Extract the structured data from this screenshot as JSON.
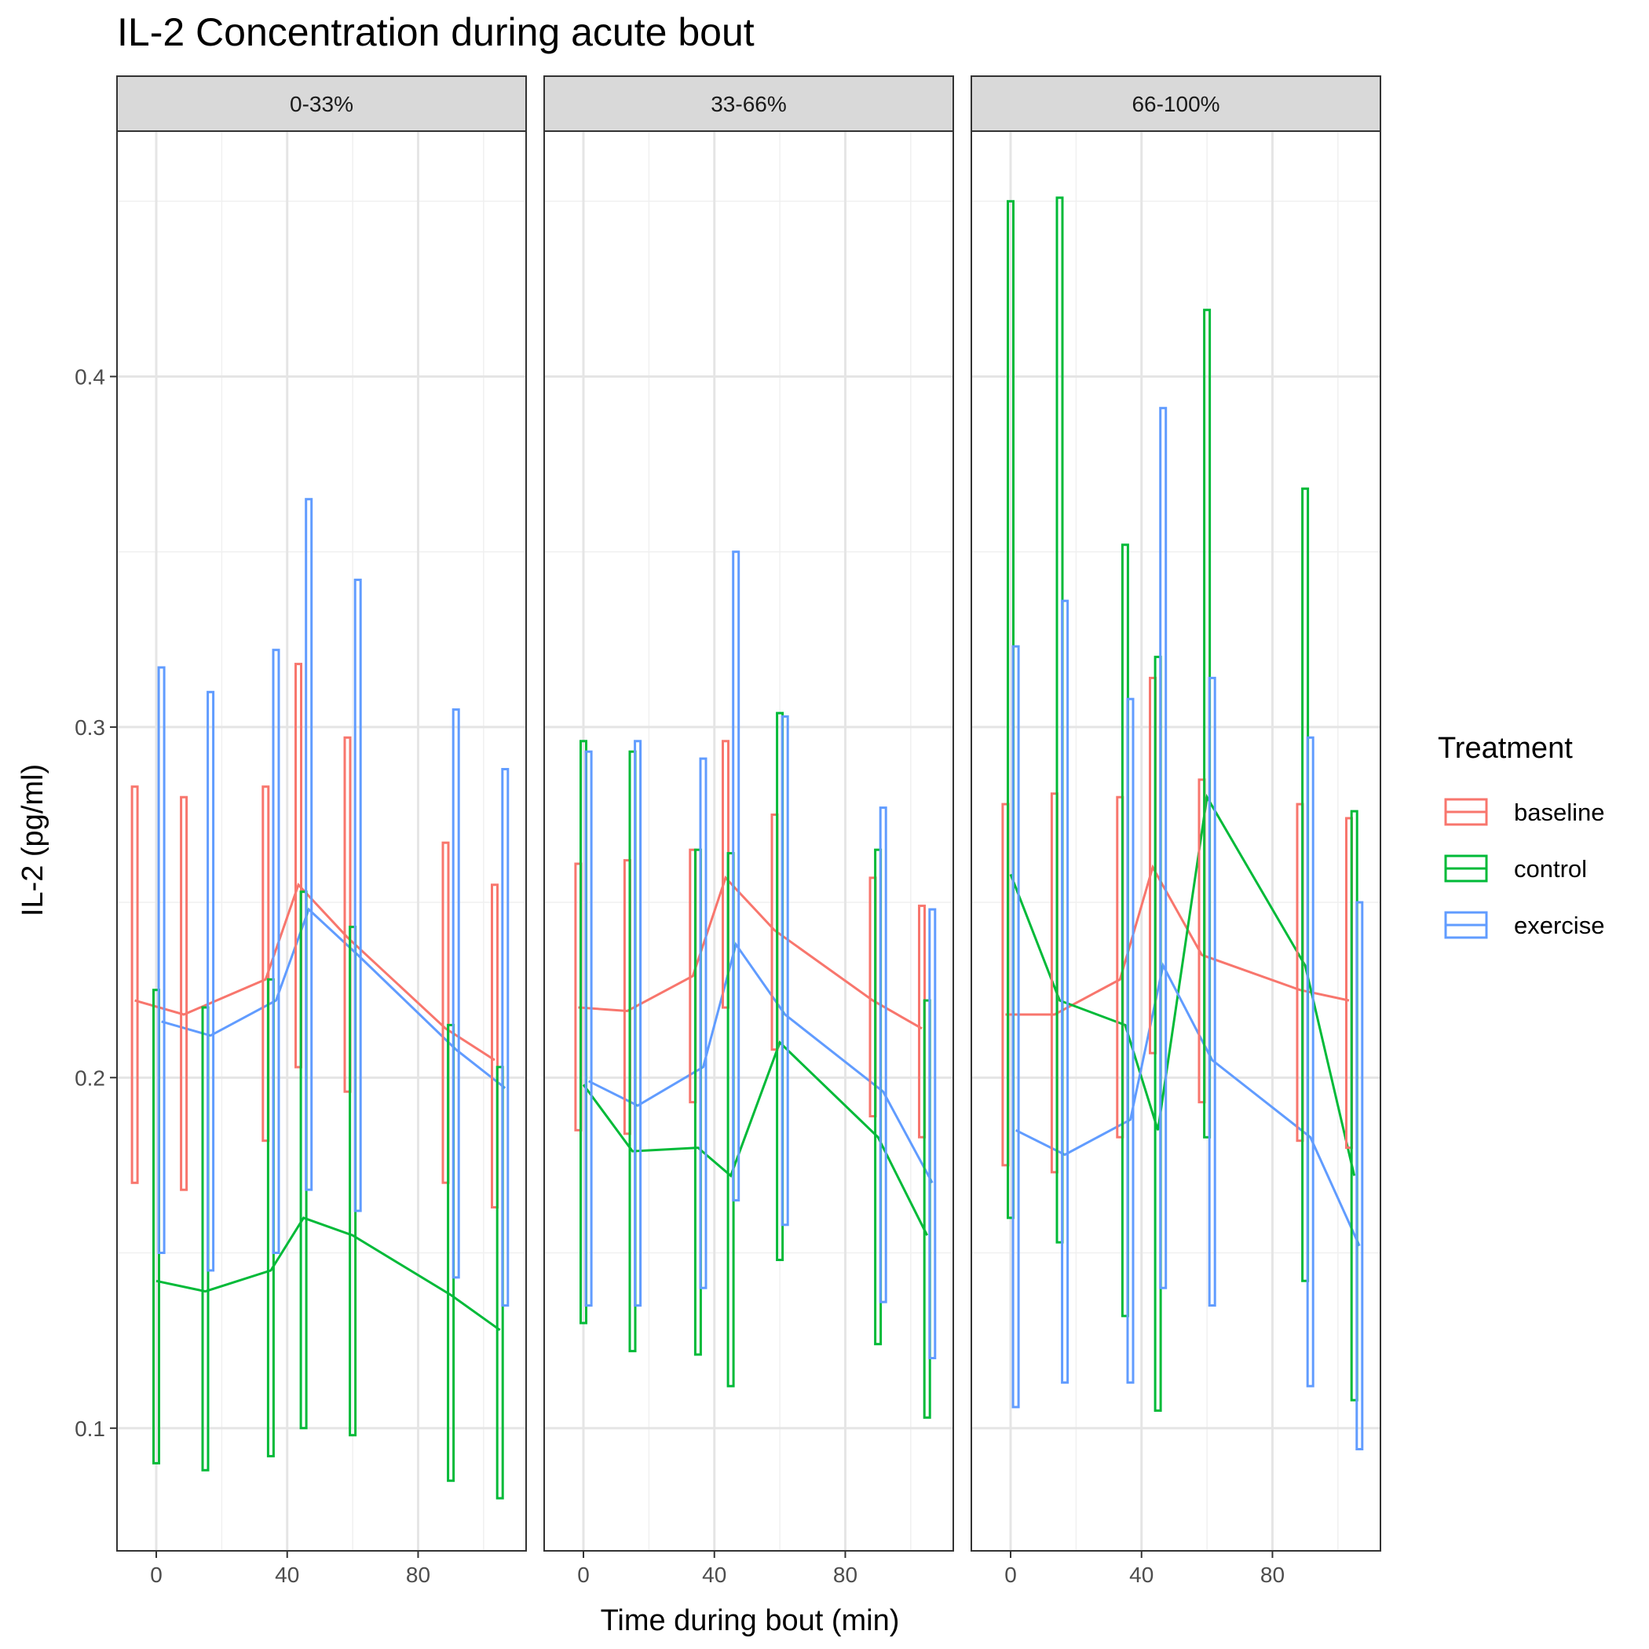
{
  "chart_data": {
    "type": "line",
    "title": "IL-2 Concentration during acute bout",
    "xlabel": "Time during bout (min)",
    "ylabel": "IL-2 (pg/ml)",
    "xlim": [
      -12,
      113
    ],
    "ylim": [
      0.065,
      0.47
    ],
    "x_ticks": [
      0,
      40,
      80
    ],
    "x_tick_labels": [
      "0",
      "40",
      "80"
    ],
    "y_ticks": [
      0.1,
      0.2,
      0.3,
      0.4
    ],
    "y_tick_labels": [
      "0.1",
      "0.2",
      "0.3",
      "0.4"
    ],
    "grid": true,
    "legend": {
      "title": "Treatment",
      "position": "right"
    },
    "series_styles": [
      {
        "name": "baseline",
        "color": "#F8766D"
      },
      {
        "name": "control",
        "color": "#00BA38"
      },
      {
        "name": "exercise",
        "color": "#619CFF"
      }
    ],
    "panels": [
      {
        "label": "0-33%",
        "series": [
          {
            "name": "baseline",
            "x": [
              -5,
              10,
              35,
              45,
              60,
              90,
              105
            ],
            "y": [
              0.222,
              0.218,
              0.228,
              0.255,
              0.24,
              0.214,
              0.205
            ],
            "ymin": [
              0.17,
              0.168,
              0.182,
              0.203,
              0.196,
              0.17,
              0.163
            ],
            "ymax": [
              0.283,
              0.28,
              0.283,
              0.318,
              0.297,
              0.267,
              0.255
            ]
          },
          {
            "name": "control",
            "x": [
              0,
              15,
              35,
              45,
              60,
              90,
              105
            ],
            "y": [
              0.142,
              0.139,
              0.145,
              0.16,
              0.155,
              0.138,
              0.128
            ],
            "ymin": [
              0.09,
              0.088,
              0.092,
              0.1,
              0.098,
              0.085,
              0.08
            ],
            "ymax": [
              0.225,
              0.22,
              0.228,
              0.253,
              0.243,
              0.215,
              0.203
            ]
          },
          {
            "name": "exercise",
            "x": [
              0,
              15,
              35,
              45,
              60,
              90,
              105
            ],
            "y": [
              0.216,
              0.212,
              0.222,
              0.248,
              0.235,
              0.208,
              0.197
            ],
            "ymin": [
              0.15,
              0.145,
              0.15,
              0.168,
              0.162,
              0.143,
              0.135
            ],
            "ymax": [
              0.317,
              0.31,
              0.322,
              0.365,
              0.342,
              0.305,
              0.288
            ]
          }
        ]
      },
      {
        "label": "33-66%",
        "series": [
          {
            "name": "baseline",
            "x": [
              0,
              15,
              35,
              45,
              60,
              90,
              105
            ],
            "y": [
              0.22,
              0.219,
              0.229,
              0.257,
              0.242,
              0.222,
              0.214
            ],
            "ymin": [
              0.185,
              0.184,
              0.193,
              0.22,
              0.208,
              0.189,
              0.183
            ],
            "ymax": [
              0.261,
              0.262,
              0.265,
              0.296,
              0.275,
              0.257,
              0.249
            ]
          },
          {
            "name": "control",
            "x": [
              0,
              15,
              35,
              45,
              60,
              90,
              105
            ],
            "y": [
              0.198,
              0.179,
              0.18,
              0.172,
              0.21,
              0.183,
              0.155
            ],
            "ymin": [
              0.13,
              0.122,
              0.121,
              0.112,
              0.148,
              0.124,
              0.103
            ],
            "ymax": [
              0.296,
              0.293,
              0.265,
              0.264,
              0.304,
              0.265,
              0.222
            ]
          },
          {
            "name": "exercise",
            "x": [
              0,
              15,
              35,
              45,
              60,
              90,
              105
            ],
            "y": [
              0.199,
              0.192,
              0.203,
              0.238,
              0.218,
              0.196,
              0.17
            ],
            "ymin": [
              0.135,
              0.135,
              0.14,
              0.165,
              0.158,
              0.136,
              0.12
            ],
            "ymax": [
              0.293,
              0.296,
              0.291,
              0.35,
              0.303,
              0.277,
              0.248
            ]
          }
        ]
      },
      {
        "label": "66-100%",
        "series": [
          {
            "name": "baseline",
            "x": [
              0,
              15,
              35,
              45,
              60,
              90,
              105
            ],
            "y": [
              0.218,
              0.218,
              0.228,
              0.26,
              0.235,
              0.225,
              0.222
            ],
            "ymin": [
              0.175,
              0.173,
              0.183,
              0.207,
              0.193,
              0.182,
              0.18
            ],
            "ymax": [
              0.278,
              0.281,
              0.28,
              0.314,
              0.285,
              0.278,
              0.274
            ]
          },
          {
            "name": "control",
            "x": [
              0,
              15,
              35,
              45,
              60,
              90,
              105
            ],
            "y": [
              0.258,
              0.222,
              0.215,
              0.185,
              0.28,
              0.232,
              0.172
            ],
            "ymin": [
              0.16,
              0.153,
              0.132,
              0.105,
              0.183,
              0.142,
              0.108
            ],
            "ymax": [
              0.45,
              0.451,
              0.352,
              0.32,
              0.419,
              0.368,
              0.276
            ]
          },
          {
            "name": "exercise",
            "x": [
              0,
              15,
              35,
              45,
              60,
              90,
              105
            ],
            "y": [
              0.185,
              0.178,
              0.188,
              0.232,
              0.205,
              0.183,
              0.152
            ],
            "ymin": [
              0.106,
              0.113,
              0.113,
              0.14,
              0.135,
              0.112,
              0.094
            ],
            "ymax": [
              0.323,
              0.336,
              0.308,
              0.391,
              0.314,
              0.297,
              0.25
            ]
          }
        ]
      }
    ]
  }
}
